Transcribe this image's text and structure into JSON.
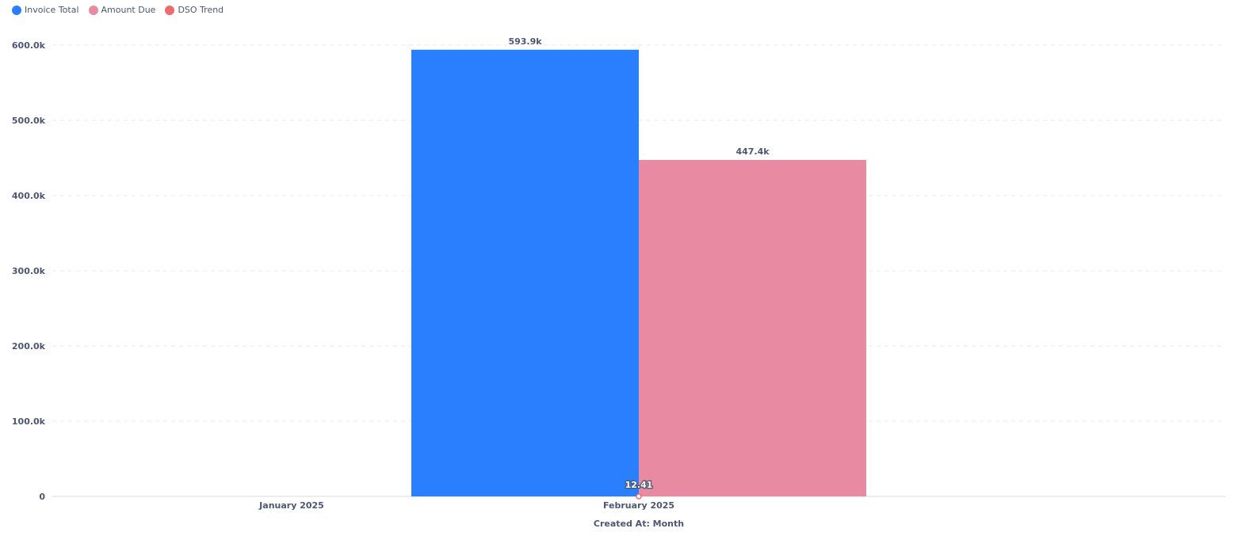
{
  "chart_data": {
    "type": "bar",
    "categories": [
      "January 2025",
      "February 2025"
    ],
    "series": [
      {
        "name": "Invoice Total",
        "kind": "bar",
        "color": "#2a7fff",
        "values": [
          null,
          593900
        ],
        "labels": [
          "",
          "593.9k"
        ]
      },
      {
        "name": "Amount Due",
        "kind": "bar",
        "color": "#e88aa2",
        "values": [
          null,
          447400
        ],
        "labels": [
          "",
          "447.4k"
        ]
      },
      {
        "name": "DSO Trend",
        "kind": "line",
        "color": "#ef6b6b",
        "values": [
          null,
          12.41
        ],
        "labels": [
          "",
          "12.41"
        ]
      }
    ],
    "yticks": [
      "0",
      "100.0k",
      "200.0k",
      "300.0k",
      "400.0k",
      "500.0k",
      "600.0k"
    ],
    "ylim": [
      0,
      600000
    ],
    "xlabel": "Created At: Month",
    "ylabel": "",
    "grid": true,
    "legend": "top-left"
  }
}
